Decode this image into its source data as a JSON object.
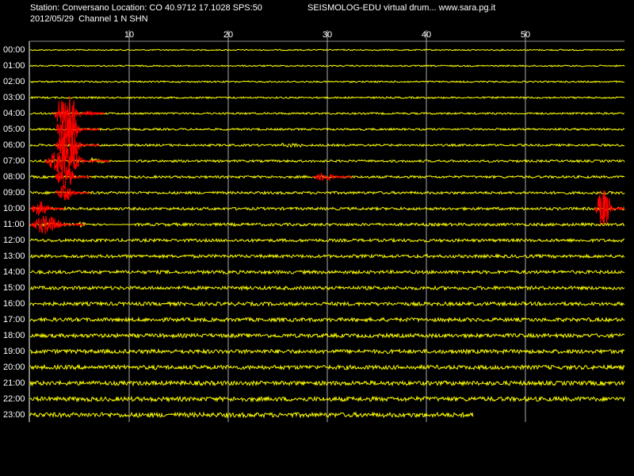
{
  "drum": {
    "station_line": "Station: Conversano Location: CO 40.9712 17.1028 SPS:50",
    "site_line": "SEISMOLOG-EDU virtual drum... www.sara.pg.it",
    "date_line": "2012/05/29  Channel 1 N SHN",
    "minute_range": [
      0,
      60
    ],
    "minute_ticks": [
      10,
      20,
      30,
      40,
      50
    ],
    "hours": [
      "00:00",
      "01:00",
      "02:00",
      "03:00",
      "04:00",
      "05:00",
      "06:00",
      "07:00",
      "08:00",
      "09:00",
      "10:00",
      "11:00",
      "12:00",
      "13:00",
      "14:00",
      "15:00",
      "16:00",
      "17:00",
      "18:00",
      "19:00",
      "20:00",
      "21:00",
      "22:00",
      "23:00"
    ],
    "current_minute": 44.8
  }
}
